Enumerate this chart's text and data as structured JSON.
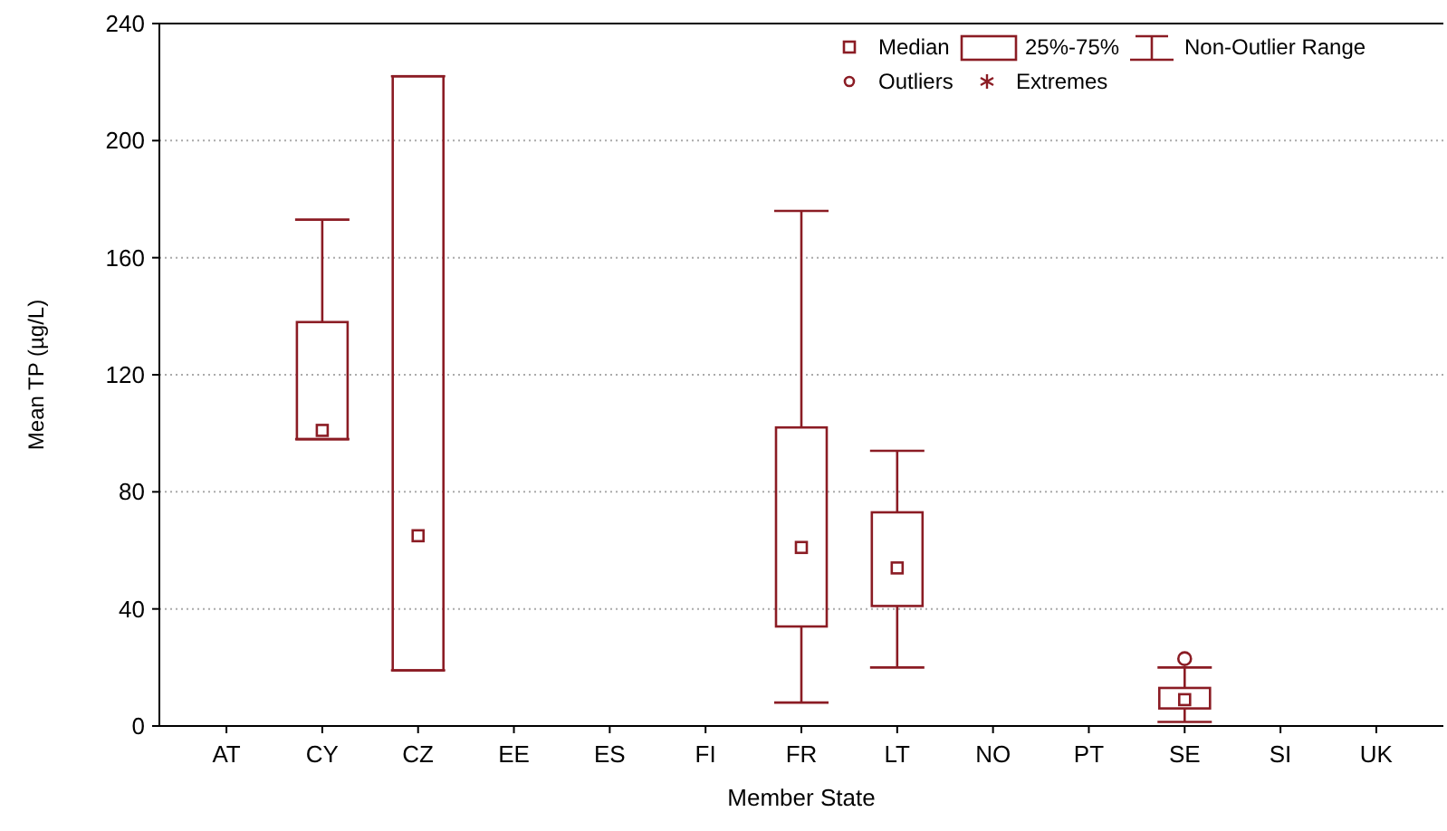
{
  "chart_data": {
    "type": "box",
    "xlabel": "Member State",
    "ylabel": "Mean TP (µg/L)",
    "categories": [
      "AT",
      "CY",
      "CZ",
      "EE",
      "ES",
      "FI",
      "FR",
      "LT",
      "NO",
      "PT",
      "SE",
      "SI",
      "UK"
    ],
    "color": "#8b1c24",
    "boxes": [
      null,
      {
        "low": 98,
        "q1": 98,
        "median": 101,
        "q3": 138,
        "high": 173
      },
      {
        "low": 19,
        "q1": 19,
        "median": 65,
        "q3": 222,
        "high": 222
      },
      null,
      null,
      null,
      {
        "low": 8,
        "q1": 34,
        "median": 61,
        "q3": 102,
        "high": 176
      },
      {
        "low": 20,
        "q1": 41,
        "median": 54,
        "q3": 73,
        "high": 94
      },
      null,
      null,
      {
        "low": 1.4,
        "q1": 6,
        "median": 9,
        "q3": 13,
        "high": 20,
        "outliers": [
          23
        ]
      },
      null,
      null
    ],
    "ylim": [
      0,
      240
    ],
    "yticks": [
      0,
      40,
      80,
      120,
      160,
      200,
      240
    ],
    "grid": "y",
    "annotations": [
      "Median",
      "25%-75%",
      "Non-Outlier Range",
      "Outliers",
      "Extremes"
    ]
  }
}
